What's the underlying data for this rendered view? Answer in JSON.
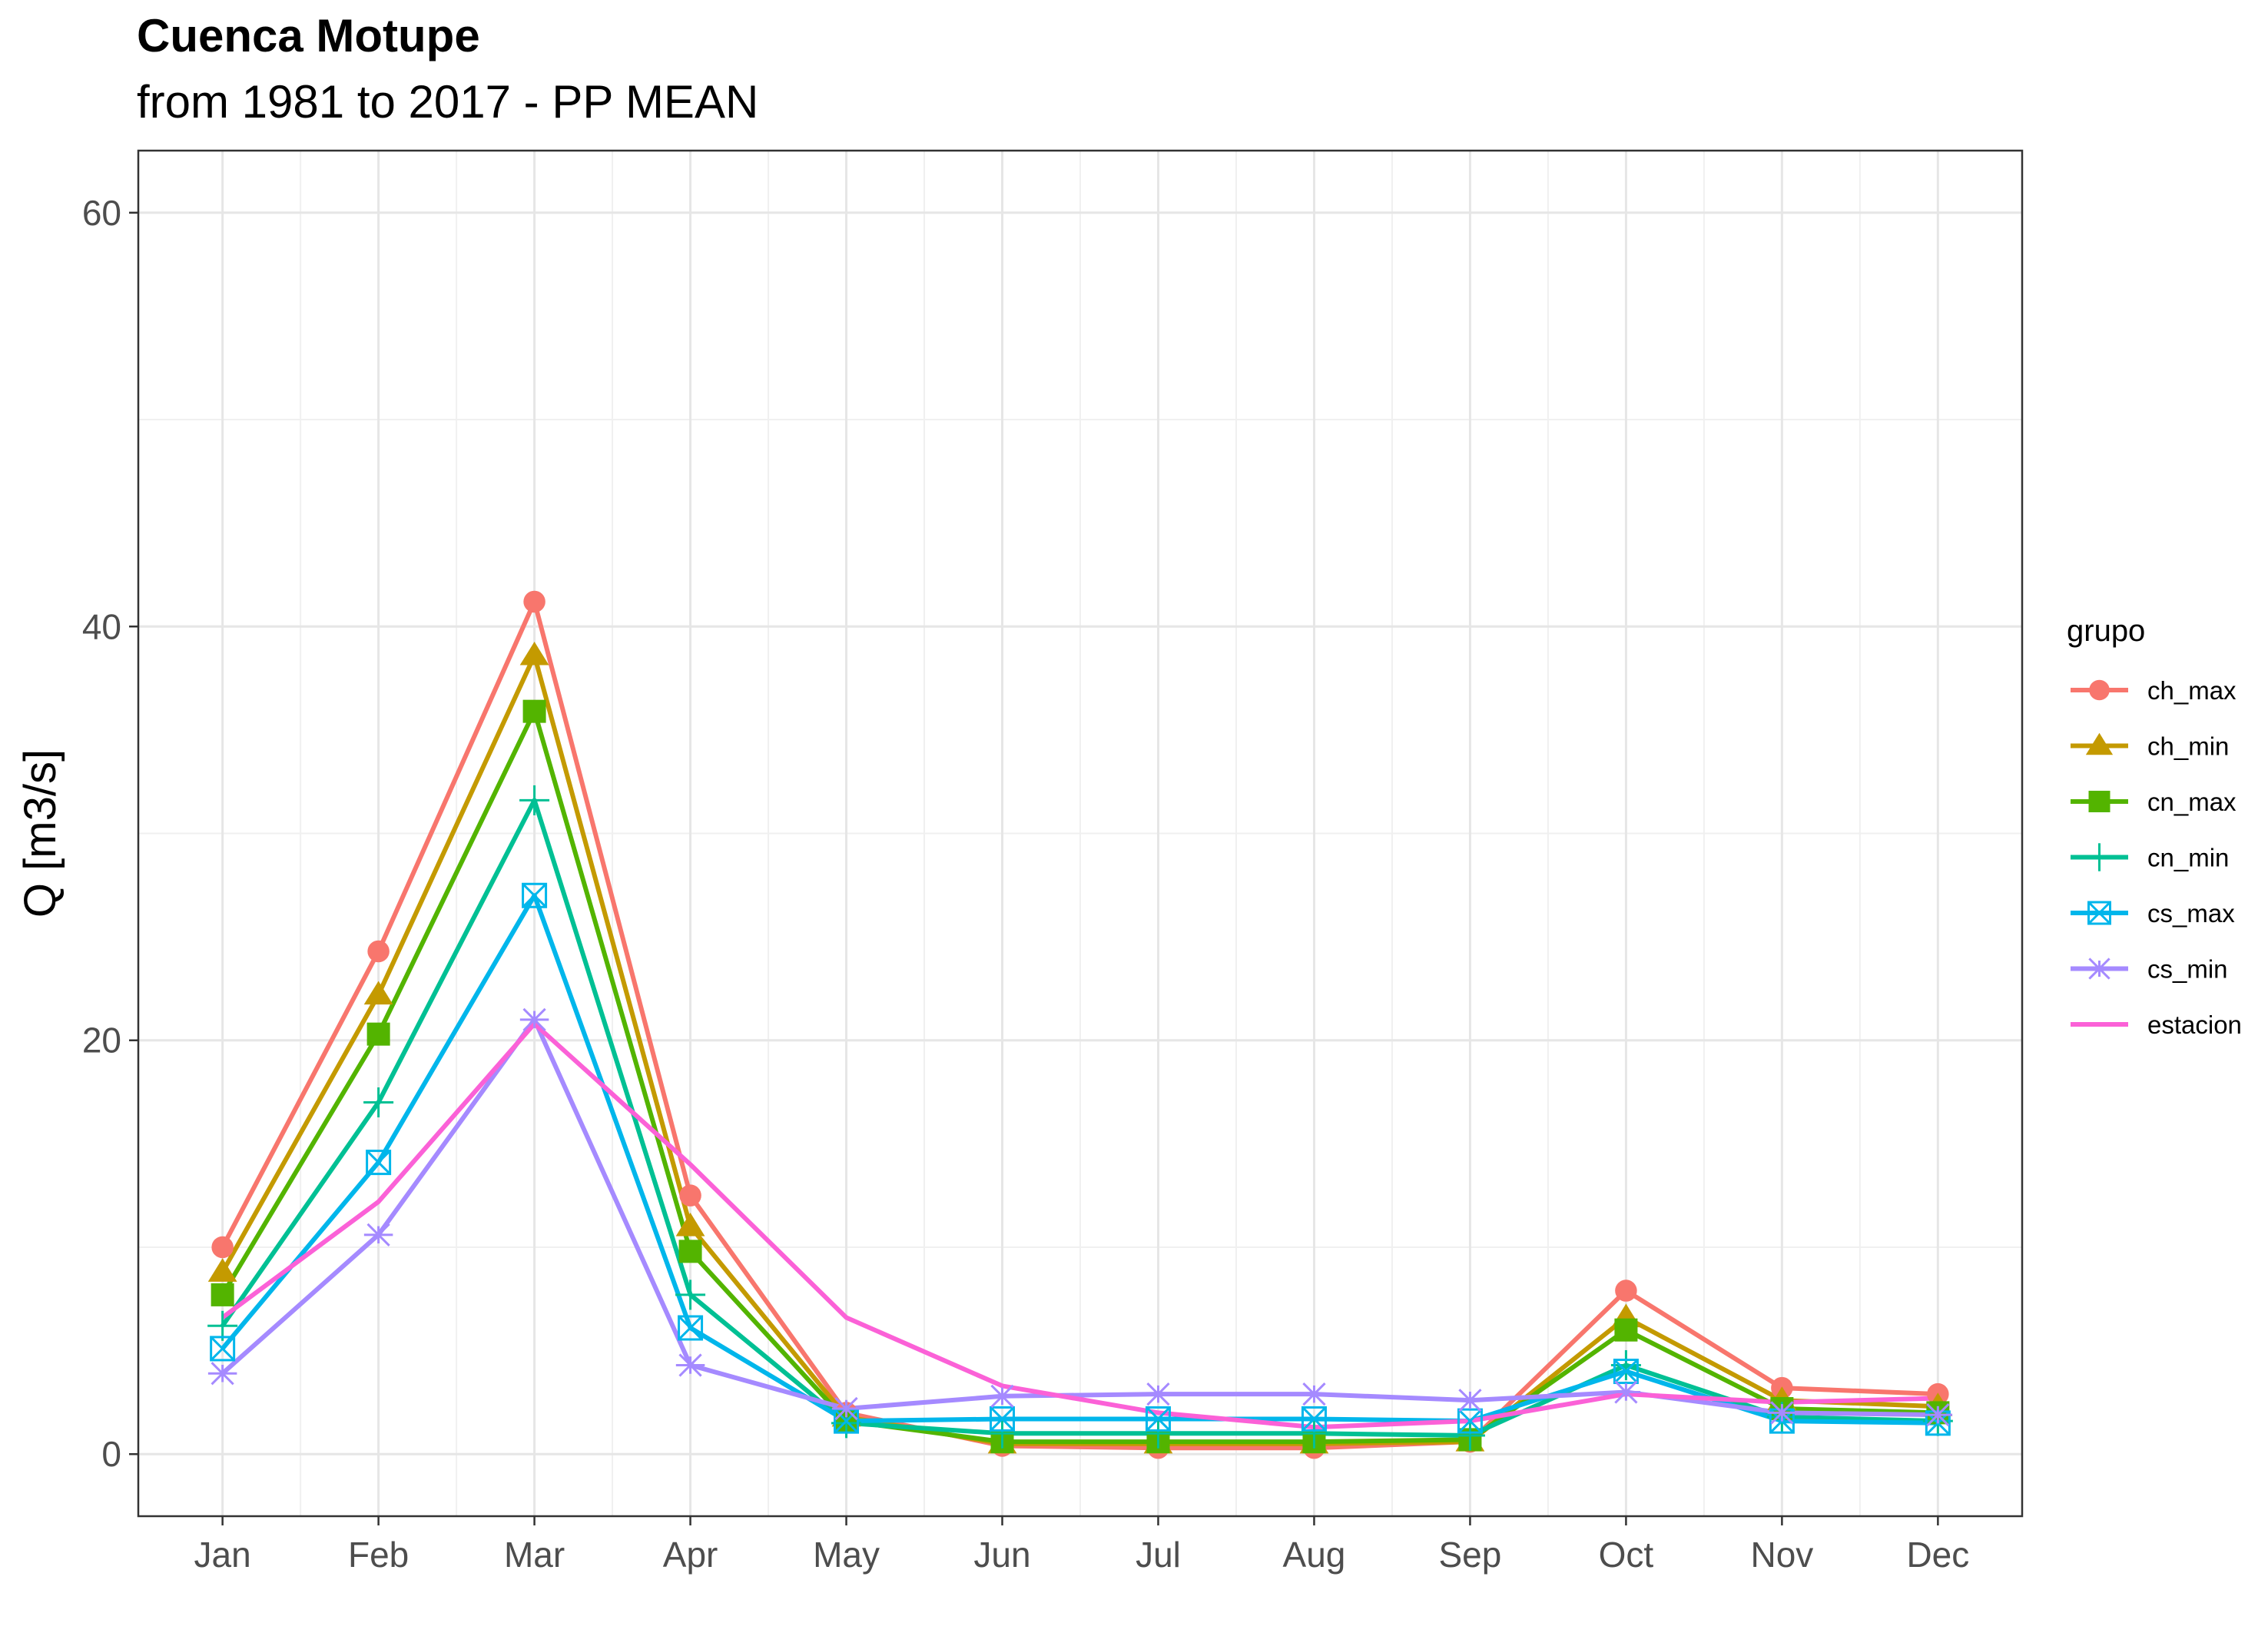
{
  "chart_data": {
    "type": "line",
    "title": "Cuenca Motupe",
    "subtitle": "from 1981 to 2017 - PP MEAN",
    "xlabel": "",
    "ylabel": "Q [m3/s]",
    "ylim": [
      -3,
      63
    ],
    "yticks": [
      0,
      20,
      40,
      60
    ],
    "categories": [
      "Jan",
      "Feb",
      "Mar",
      "Apr",
      "May",
      "Jun",
      "Jul",
      "Aug",
      "Sep",
      "Oct",
      "Nov",
      "Dec"
    ],
    "grid": true,
    "legend": {
      "title": "grupo",
      "position": "right"
    },
    "series": [
      {
        "name": "ch_max",
        "color": "#F8766D",
        "marker": "circle",
        "values": [
          10.0,
          24.3,
          41.2,
          12.5,
          2.0,
          0.4,
          0.3,
          0.3,
          0.6,
          7.9,
          3.2,
          2.9
        ]
      },
      {
        "name": "ch_min",
        "color": "#C49A00",
        "marker": "triangle",
        "values": [
          8.8,
          22.2,
          38.6,
          11.0,
          1.8,
          0.5,
          0.5,
          0.5,
          0.6,
          6.6,
          2.6,
          2.3
        ]
      },
      {
        "name": "cn_max",
        "color": "#53B400",
        "marker": "square",
        "values": [
          7.7,
          20.3,
          35.9,
          9.8,
          1.6,
          0.6,
          0.6,
          0.6,
          0.7,
          6.0,
          2.2,
          2.0
        ]
      },
      {
        "name": "cn_min",
        "color": "#00C094",
        "marker": "plus",
        "values": [
          6.2,
          17.0,
          31.6,
          7.7,
          1.5,
          1.0,
          1.0,
          1.0,
          0.9,
          4.3,
          1.8,
          1.6
        ]
      },
      {
        "name": "cs_max",
        "color": "#00B6EB",
        "marker": "square-x",
        "values": [
          5.1,
          14.1,
          27.0,
          6.1,
          1.6,
          1.7,
          1.7,
          1.7,
          1.6,
          4.0,
          1.6,
          1.5
        ]
      },
      {
        "name": "cs_min",
        "color": "#A58AFF",
        "marker": "asterisk",
        "values": [
          3.9,
          10.6,
          21.0,
          4.3,
          2.2,
          2.8,
          2.9,
          2.9,
          2.6,
          3.0,
          2.0,
          1.9
        ]
      },
      {
        "name": "estacion",
        "color": "#FB61D7",
        "marker": "none",
        "values": [
          6.6,
          12.2,
          20.8,
          14.0,
          6.6,
          3.3,
          2.0,
          1.3,
          1.6,
          2.9,
          2.5,
          2.7
        ]
      }
    ]
  }
}
